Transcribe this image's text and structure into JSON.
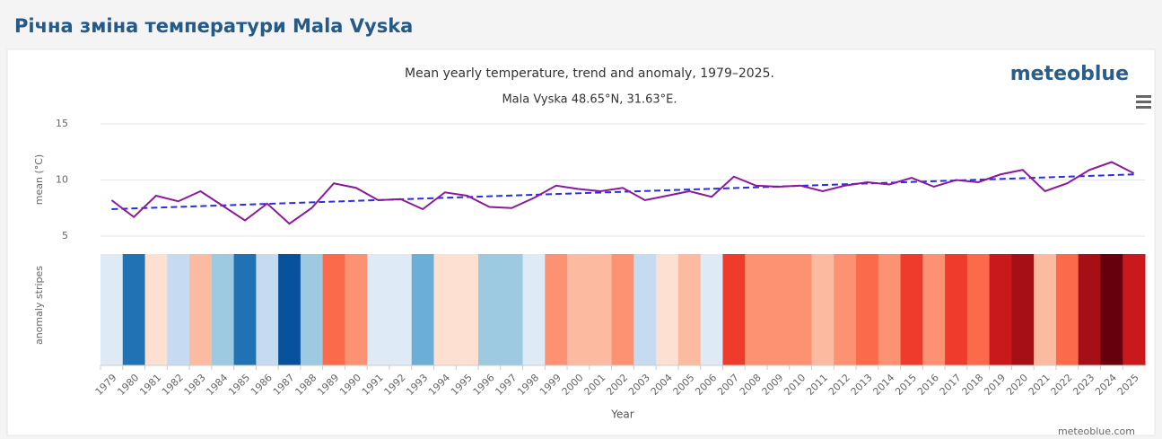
{
  "page_title": "Річна зміна температури Mala Vyska",
  "logo": "meteoblue",
  "credit": "meteoblue.com",
  "chart_data": {
    "type": "line",
    "title": "Mean yearly temperature, trend and anomaly, 1979–2025.",
    "subtitle": "Mala Vyska 48.65°N, 31.63°E.",
    "y_label": "mean (°C)",
    "stripes_label": "anomaly stripes",
    "x_label": "Year",
    "categories": [
      "1979",
      "1980",
      "1981",
      "1982",
      "1983",
      "1984",
      "1985",
      "1986",
      "1987",
      "1988",
      "1989",
      "1990",
      "1991",
      "1992",
      "1993",
      "1994",
      "1995",
      "1996",
      "1997",
      "1998",
      "1999",
      "2000",
      "2001",
      "2002",
      "2003",
      "2004",
      "2005",
      "2006",
      "2007",
      "2008",
      "2009",
      "2010",
      "2011",
      "2012",
      "2013",
      "2014",
      "2015",
      "2016",
      "2017",
      "2018",
      "2019",
      "2020",
      "2021",
      "2022",
      "2023",
      "2024",
      "2025"
    ],
    "series": [
      {
        "name": "mean",
        "color": "#8b1a9a",
        "values": [
          8.2,
          6.7,
          8.6,
          8.1,
          9.0,
          7.7,
          6.4,
          7.9,
          6.1,
          7.5,
          9.7,
          9.3,
          8.2,
          8.3,
          7.4,
          8.9,
          8.6,
          7.6,
          7.5,
          8.4,
          9.5,
          9.2,
          9.0,
          9.3,
          8.2,
          8.6,
          9.0,
          8.5,
          10.3,
          9.5,
          9.4,
          9.5,
          9.0,
          9.5,
          9.8,
          9.6,
          10.2,
          9.4,
          10.0,
          9.8,
          10.5,
          10.9,
          9.0,
          9.7,
          10.9,
          11.6,
          10.6
        ]
      }
    ],
    "trend": {
      "name": "trend",
      "color": "#2a2ee0",
      "x": [
        1979,
        2025
      ],
      "values": [
        7.4,
        10.5
      ]
    },
    "stripe_colors": [
      "#deebf7",
      "#2171b5",
      "#fee0d2",
      "#c6dbef",
      "#fcbba1",
      "#9ecae1",
      "#2171b5",
      "#c6dbef",
      "#08519c",
      "#9ecae1",
      "#fb6a4a",
      "#fc9272",
      "#deebf7",
      "#deebf7",
      "#6baed6",
      "#fee0d2",
      "#fee0d2",
      "#9ecae1",
      "#9ecae1",
      "#deebf7",
      "#fc9272",
      "#fcbba1",
      "#fcbba1",
      "#fc9272",
      "#c6dbef",
      "#fee0d2",
      "#fcbba1",
      "#deebf7",
      "#ef3b2c",
      "#fc9272",
      "#fc9272",
      "#fc9272",
      "#fcbba1",
      "#fc9272",
      "#fb6a4a",
      "#fc9272",
      "#ef3b2c",
      "#fc9272",
      "#ef3b2c",
      "#fb6a4a",
      "#cb181d",
      "#a50f15",
      "#fcbba1",
      "#fb6a4a",
      "#a50f15",
      "#67000d",
      "#cb181d"
    ],
    "ylim": [
      5,
      15
    ],
    "yticks": [
      5,
      10,
      15
    ],
    "grid": true
  }
}
